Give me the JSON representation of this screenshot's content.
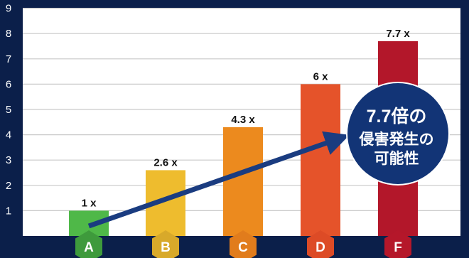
{
  "chart_data": {
    "type": "bar",
    "categories": [
      "A",
      "B",
      "C",
      "D",
      "F"
    ],
    "values": [
      1,
      2.6,
      4.3,
      6,
      7.7
    ],
    "data_labels": [
      "1 x",
      "2.6 x",
      "4.3 x",
      "6 x",
      "7.7 x"
    ],
    "ylim": [
      0,
      9
    ],
    "yticks": [
      "1",
      "2",
      "3",
      "4",
      "5",
      "6",
      "7",
      "8",
      "9"
    ],
    "grid": true,
    "colors": [
      "#4fb848",
      "#eebc2e",
      "#ec8a1e",
      "#e5532a",
      "#b3172a"
    ],
    "badge_colors": [
      "#3e9a3c",
      "#d8a92a",
      "#e17c1c",
      "#dd4b26",
      "#b5172a"
    ],
    "annotation": {
      "line1": "7.7倍の",
      "line2": "侵害発生の",
      "line3": "可能性"
    },
    "arrow_color": "#1a3c80",
    "bubble_color": "#123476"
  }
}
